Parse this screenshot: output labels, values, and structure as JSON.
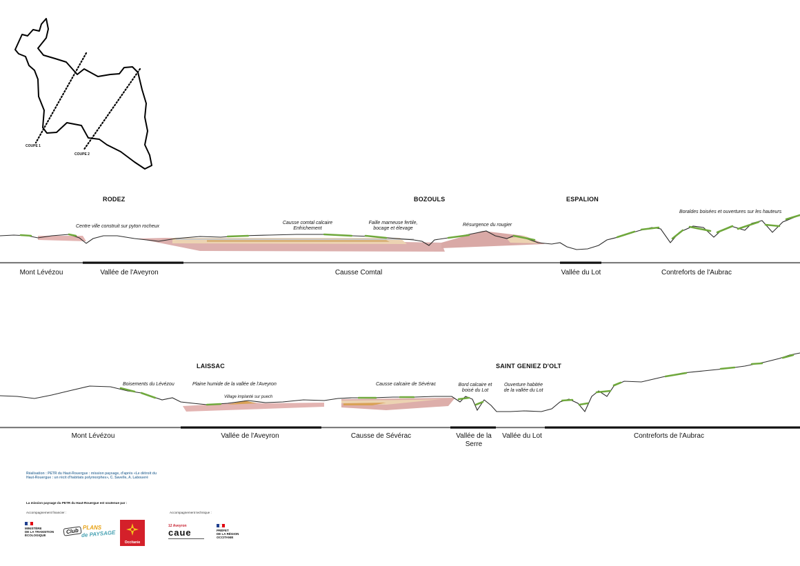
{
  "map": {
    "coupe1_label": "COUPE 1",
    "coupe2_label": "COUPE 2"
  },
  "coupe1": {
    "towns": [
      "RODEZ",
      "BOZOULS",
      "ESPALION"
    ],
    "annotations": {
      "centre": "Centre ville construit sur pyton rocheux",
      "causse_l1": "Causse comtal calcaire",
      "causse_l2": "Enfrichement",
      "faille_l1": "Faille marneuse fertile,",
      "faille_l2": "bocage et élevage",
      "resurgence": "Résurgence du rougier",
      "boraldes": "Boraldes boisées et ouvertures sur les hauteurs"
    },
    "units": [
      "Mont Lévézou",
      "Vallée de l'Aveyron",
      "Causse Comtal",
      "Vallée du Lot",
      "Contreforts de l'Aubrac"
    ]
  },
  "coupe2": {
    "towns": [
      "LAISSAC",
      "SAINT GENIEZ D'OLT"
    ],
    "annotations": {
      "boisements": "Boisements du Lévézou",
      "plaine": "Plaine humide de la vallée de l'Aveyron",
      "village": "Village implanté sur puech",
      "causse": "Causse calcaire de Sévérac",
      "bord_l1": "Bord calcaire et",
      "bord_l2": "boisé du Lot",
      "ouverture_l1": "Ouverture habitée",
      "ouverture_l2": "de la vallée du Lot"
    },
    "units": [
      "Mont Lévézou",
      "Vallée de l'Aveyron",
      "Causse de Sévérac",
      "Vallée de la",
      "Serre",
      "Vallée du Lot",
      "Contreforts de l'Aubrac"
    ]
  },
  "credits": {
    "realisation_l1": "Réalisation : PETR du Haut-Rouergue : mission paysage, d'après «Le détroit du",
    "realisation_l2": "Haut-Rouergue : un récit d'habitats polymorphes», C. Savelle, A. Laboueré",
    "support": "La mission paysage du PETR du Haut-Rouergue est soutenue par :",
    "financier": "Accompagnement financier :",
    "technique": "Accompagnement technique :"
  },
  "logos": {
    "ministere_l1": "MINISTÈRE",
    "ministere_l2": "DE LA TRANSITION",
    "ministere_l3": "ÉCOLOGIQUE",
    "club_l1": "Club",
    "club_l2": "PLANS",
    "club_l3": "de PAYSAGE",
    "occitanie": "Occitanie",
    "caue_num": "12",
    "caue_dept": "Aveyron",
    "caue": "caue",
    "prefet_l1": "PRÉFET",
    "prefet_l2": "DE LA RÉGION",
    "prefet_l3": "OCCITANIE"
  }
}
